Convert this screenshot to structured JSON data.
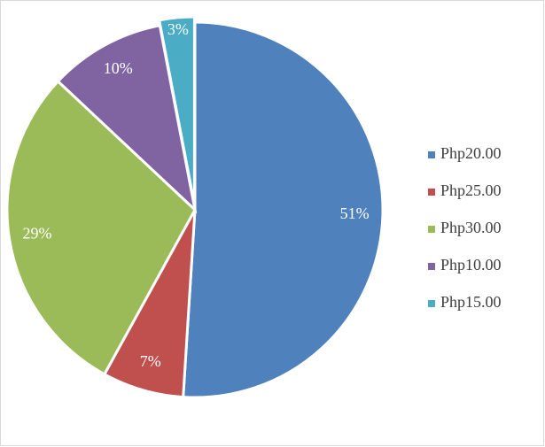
{
  "chart_data": {
    "type": "pie",
    "categories": [
      "Php20.00",
      "Php25.00",
      "Php30.00",
      "Php10.00",
      "Php15.00"
    ],
    "values": [
      51,
      7,
      29,
      10,
      3
    ],
    "value_labels": [
      "51%",
      "7%",
      "29%",
      "10%",
      "3%"
    ],
    "colors": [
      "#4f81bd",
      "#c0504d",
      "#9bbb59",
      "#8064a2",
      "#4bacc6"
    ],
    "legend": "right"
  }
}
